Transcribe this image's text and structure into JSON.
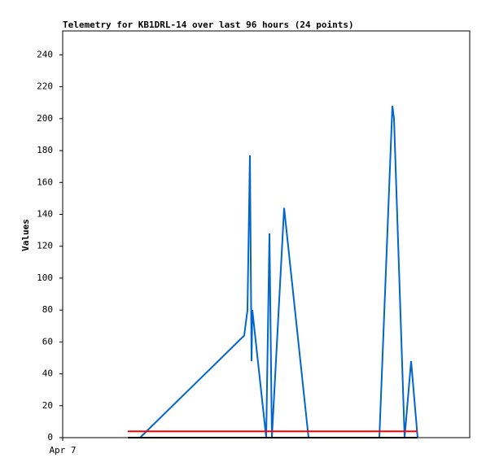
{
  "chart_data": {
    "type": "line",
    "title": "Telemetry for KB1DRL-14 over last 96 hours (24 points)",
    "y_label": "Values",
    "xlim": [
      0,
      100
    ],
    "xticks": [
      {
        "value": 0,
        "label": "Apr 7"
      }
    ],
    "ylim": [
      0,
      255
    ],
    "yticks": [
      0,
      20,
      40,
      60,
      80,
      100,
      120,
      140,
      160,
      180,
      200,
      220,
      240
    ],
    "series": [
      {
        "color": "#0066cc",
        "x": [
          19,
          44.6,
          45.4,
          46,
          46.4,
          46.6,
          50,
          50.8,
          51.4,
          54.4,
          60.4,
          77.8,
          81,
          81.4,
          84,
          85.6,
          87.2
        ],
        "values": [
          0,
          64,
          80,
          177,
          48,
          80,
          0,
          128,
          0,
          144,
          0,
          0,
          208,
          200,
          0,
          48,
          0
        ]
      },
      {
        "color": "#ff0000",
        "x": [
          16,
          87.2
        ],
        "values": [
          4,
          4
        ]
      },
      {
        "color": "#000000",
        "x": [
          16,
          87.2
        ],
        "values": [
          0,
          0
        ]
      }
    ]
  }
}
